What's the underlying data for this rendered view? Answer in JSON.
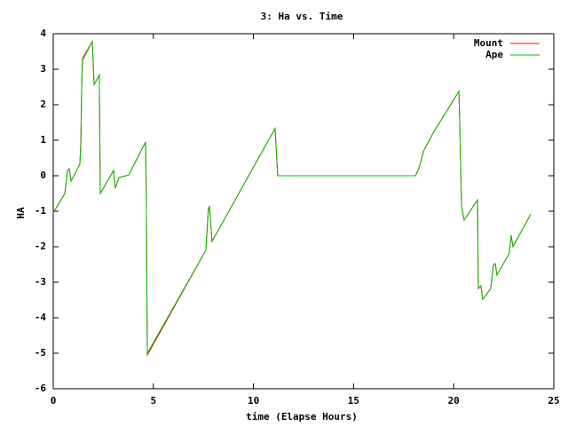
{
  "chart_data": {
    "type": "line",
    "title": "3: Ha vs. Time",
    "x_label": "time (Elapse Hours)",
    "y_label": "HA",
    "x": [
      0,
      0.1,
      0.58,
      0.71,
      0.8,
      0.89,
      1.33,
      1.38,
      1.42,
      1.46,
      1.95,
      2.04,
      2.3,
      2.35,
      3.01,
      3.1,
      3.28,
      3.77,
      4.61,
      4.65,
      4.68,
      4.7,
      7.62,
      7.75,
      7.8,
      7.93,
      11.08,
      11.21,
      18.09,
      18.26,
      18.5,
      18.97,
      20.26,
      20.3,
      20.39,
      20.52,
      21.19,
      21.23,
      21.36,
      21.45,
      21.85,
      21.99,
      22.08,
      22.16,
      22.78,
      22.87,
      22.96,
      23.85
    ],
    "series": [
      {
        "name": "Mount",
        "color": "#ff0000",
        "values": [
          -1.0,
          -0.95,
          -0.5,
          0.15,
          0.2,
          -0.15,
          0.33,
          1.0,
          2.5,
          3.3,
          3.78,
          2.57,
          2.83,
          -0.5,
          0.15,
          -0.35,
          -0.05,
          0.02,
          0.95,
          -0.55,
          -3.55,
          -5.05,
          -2.1,
          -0.93,
          -0.85,
          -1.85,
          1.33,
          0.0,
          0.0,
          0.2,
          0.7,
          1.2,
          2.38,
          1.58,
          -0.85,
          -1.25,
          -0.68,
          -3.18,
          -3.1,
          -3.48,
          -3.18,
          -2.5,
          -2.48,
          -2.8,
          -2.18,
          -1.68,
          -2.0,
          -1.08
        ]
      },
      {
        "name": "Ape",
        "color": "#00c000",
        "values": [
          -1.0,
          -0.95,
          -0.5,
          0.15,
          0.2,
          -0.15,
          0.33,
          0.9,
          2.45,
          3.25,
          3.78,
          2.57,
          2.83,
          -0.5,
          0.15,
          -0.35,
          -0.05,
          0.02,
          0.95,
          -0.55,
          -3.5,
          -5.0,
          -2.1,
          -0.93,
          -0.85,
          -1.85,
          1.33,
          0.0,
          0.0,
          0.2,
          0.7,
          1.2,
          2.38,
          1.58,
          -0.85,
          -1.25,
          -0.68,
          -3.18,
          -3.1,
          -3.48,
          -3.18,
          -2.5,
          -2.48,
          -2.8,
          -2.18,
          -1.68,
          -2.0,
          -1.08
        ]
      }
    ],
    "xlim": [
      0,
      25
    ],
    "xticks": [
      0,
      5,
      10,
      15,
      20,
      25
    ],
    "ylim": [
      -6,
      4
    ],
    "yticks": [
      -6,
      -5,
      -4,
      -3,
      -2,
      -1,
      0,
      1,
      2,
      3,
      4
    ],
    "legend": "top-right",
    "grid": false
  }
}
